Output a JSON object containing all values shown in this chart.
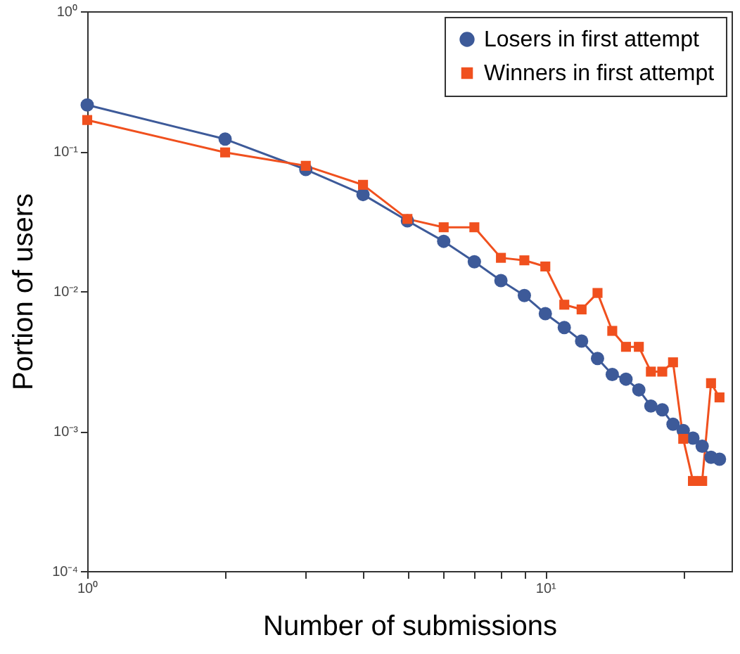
{
  "chart_data": {
    "type": "line",
    "xlabel": "Number of submissions",
    "ylabel": "Portion of users",
    "x": [
      1,
      2,
      3,
      4,
      5,
      6,
      7,
      8,
      9,
      10,
      11,
      12,
      13,
      14,
      15,
      16,
      17,
      18,
      19,
      20,
      21,
      22,
      23,
      24
    ],
    "series": [
      {
        "name": "Losers in first attempt",
        "color": "#3d5a99",
        "marker": "circle",
        "values": [
          0.214,
          0.122,
          0.074,
          0.049,
          0.0318,
          0.0227,
          0.0162,
          0.0119,
          0.0093,
          0.0069,
          0.0055,
          0.0044,
          0.0033,
          0.00254,
          0.00235,
          0.00197,
          0.00151,
          0.00142,
          0.00112,
          0.00101,
          0.00089,
          0.00078,
          0.00065,
          0.00063
        ]
      },
      {
        "name": "Winners in first attempt",
        "color": "#f0501e",
        "marker": "square",
        "values": [
          0.167,
          0.098,
          0.0786,
          0.0575,
          0.0328,
          0.0286,
          0.0286,
          0.0173,
          0.0166,
          0.015,
          0.008,
          0.0074,
          0.0097,
          0.0052,
          0.004,
          0.004,
          0.00266,
          0.00266,
          0.0031,
          0.00088,
          0.00044,
          0.00044,
          0.0022,
          0.00174
        ]
      }
    ],
    "log": "xy",
    "xlim": [
      1,
      25.5
    ],
    "ylim": [
      0.0001,
      1
    ],
    "xticks": [
      {
        "value": 1,
        "label": "10⁰"
      },
      {
        "value": 2,
        "label": null
      },
      {
        "value": 3,
        "label": null
      },
      {
        "value": 4,
        "label": null
      },
      {
        "value": 5,
        "label": null
      },
      {
        "value": 6,
        "label": null
      },
      {
        "value": 7,
        "label": null
      },
      {
        "value": 8,
        "label": null
      },
      {
        "value": 9,
        "label": null
      },
      {
        "value": 10,
        "label": "10¹"
      },
      {
        "value": 20,
        "label": null
      }
    ],
    "yticks": [
      {
        "value": 0.0001,
        "label": "10⁻⁴"
      },
      {
        "value": 0.001,
        "label": "10⁻³"
      },
      {
        "value": 0.01,
        "label": "10⁻²"
      },
      {
        "value": 0.1,
        "label": "10⁻¹"
      },
      {
        "value": 1,
        "label": "10⁰"
      }
    ],
    "grid": false,
    "legend": "top right",
    "line_style": "solid"
  }
}
